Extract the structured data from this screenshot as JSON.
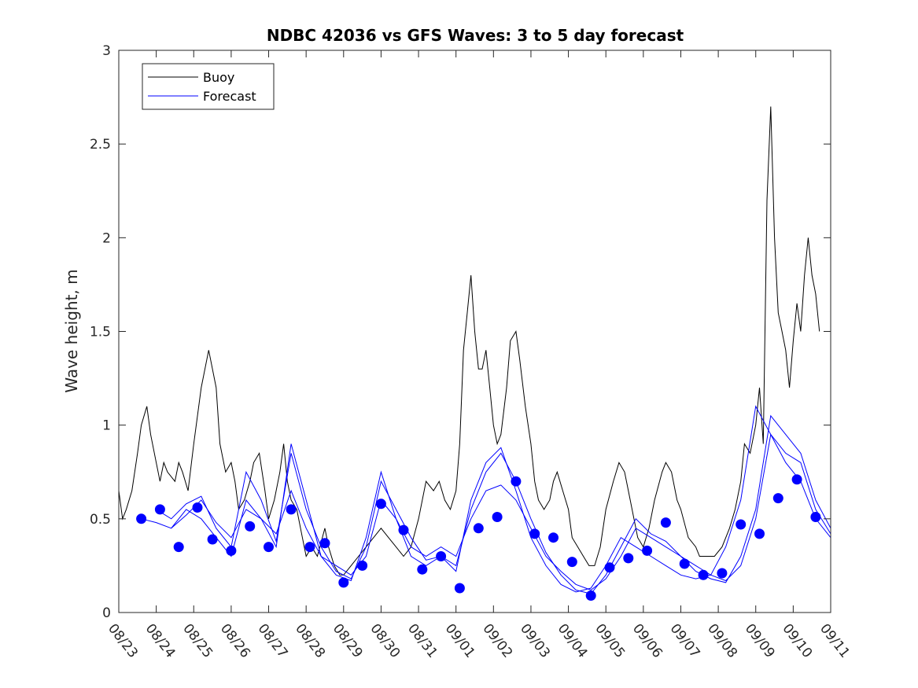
{
  "chart_data": {
    "type": "line",
    "title": "NDBC 42036 vs GFS Waves: 3 to 5 day forecast",
    "xlabel": "",
    "ylabel": "Wave height, m",
    "x_unit": "days since 08/23 00:00",
    "xlim": [
      0,
      19
    ],
    "ylim": [
      0,
      3
    ],
    "x_tick_labels": [
      "08/23",
      "08/24",
      "08/25",
      "08/26",
      "08/27",
      "08/28",
      "08/29",
      "08/30",
      "08/31",
      "09/01",
      "09/02",
      "09/03",
      "09/04",
      "09/05",
      "09/06",
      "09/07",
      "09/08",
      "09/09",
      "09/10",
      "09/11"
    ],
    "y_tick_labels": [
      "0",
      "0.5",
      "1",
      "1.5",
      "2",
      "2.5",
      "3"
    ],
    "y_ticks": [
      0,
      0.5,
      1,
      1.5,
      2,
      2.5,
      3
    ],
    "grid": false,
    "legend": {
      "position": "top-left",
      "entries": [
        "Buoy",
        "Forecast"
      ]
    },
    "colors": {
      "buoy": "#000000",
      "forecast": "#0000ff"
    },
    "buoy": {
      "name": "Buoy",
      "x": [
        0,
        0.1,
        0.2,
        0.35,
        0.5,
        0.6,
        0.75,
        0.85,
        1.0,
        1.1,
        1.2,
        1.3,
        1.5,
        1.6,
        1.7,
        1.85,
        2.0,
        2.2,
        2.4,
        2.6,
        2.7,
        2.85,
        3.0,
        3.1,
        3.2,
        3.35,
        3.5,
        3.6,
        3.75,
        3.9,
        4.0,
        4.15,
        4.3,
        4.4,
        4.5,
        4.6,
        4.75,
        4.9,
        5.0,
        5.15,
        5.3,
        5.5,
        5.6,
        5.75,
        5.9,
        6.0,
        6.2,
        6.4,
        6.6,
        6.8,
        7.0,
        7.2,
        7.4,
        7.6,
        7.8,
        8.0,
        8.2,
        8.4,
        8.55,
        8.7,
        8.85,
        9.0,
        9.1,
        9.2,
        9.3,
        9.4,
        9.5,
        9.6,
        9.7,
        9.8,
        9.9,
        10.0,
        10.1,
        10.2,
        10.35,
        10.45,
        10.6,
        10.7,
        10.85,
        11.0,
        11.1,
        11.2,
        11.35,
        11.5,
        11.6,
        11.7,
        11.85,
        12.0,
        12.1,
        12.25,
        12.4,
        12.55,
        12.7,
        12.85,
        13.0,
        13.2,
        13.35,
        13.5,
        13.6,
        13.75,
        13.85,
        14.0,
        14.15,
        14.3,
        14.5,
        14.6,
        14.75,
        14.9,
        15.0,
        15.2,
        15.4,
        15.5,
        15.7,
        15.9,
        16.1,
        16.3,
        16.45,
        16.6,
        16.7,
        16.85,
        17.0,
        17.1,
        17.2,
        17.3,
        17.4,
        17.5,
        17.6,
        17.7,
        17.8,
        17.9,
        18.0,
        18.1,
        18.2,
        18.3,
        18.4,
        18.5,
        18.6,
        18.7
      ],
      "values": [
        0.65,
        0.5,
        0.55,
        0.65,
        0.85,
        1.0,
        1.1,
        0.95,
        0.8,
        0.7,
        0.8,
        0.75,
        0.7,
        0.8,
        0.75,
        0.65,
        0.9,
        1.2,
        1.4,
        1.2,
        0.9,
        0.75,
        0.8,
        0.7,
        0.55,
        0.6,
        0.7,
        0.8,
        0.85,
        0.65,
        0.5,
        0.6,
        0.75,
        0.9,
        0.7,
        0.6,
        0.55,
        0.4,
        0.3,
        0.35,
        0.3,
        0.45,
        0.35,
        0.25,
        0.2,
        0.2,
        0.25,
        0.3,
        0.35,
        0.4,
        0.45,
        0.4,
        0.35,
        0.3,
        0.35,
        0.5,
        0.7,
        0.65,
        0.7,
        0.6,
        0.55,
        0.65,
        0.9,
        1.4,
        1.6,
        1.8,
        1.5,
        1.3,
        1.3,
        1.4,
        1.2,
        1.0,
        0.9,
        0.95,
        1.2,
        1.45,
        1.5,
        1.35,
        1.1,
        0.9,
        0.7,
        0.6,
        0.55,
        0.6,
        0.7,
        0.75,
        0.65,
        0.55,
        0.4,
        0.35,
        0.3,
        0.25,
        0.25,
        0.35,
        0.55,
        0.7,
        0.8,
        0.75,
        0.65,
        0.5,
        0.4,
        0.35,
        0.45,
        0.6,
        0.75,
        0.8,
        0.75,
        0.6,
        0.55,
        0.4,
        0.35,
        0.3,
        0.3,
        0.3,
        0.35,
        0.45,
        0.55,
        0.7,
        0.9,
        0.85,
        1.0,
        1.2,
        0.9,
        2.2,
        2.7,
        2.0,
        1.6,
        1.5,
        1.4,
        1.2,
        1.45,
        1.65,
        1.5,
        1.8,
        2.0,
        1.8,
        1.7,
        1.5
      ]
    },
    "forecast_dots": {
      "name": "Forecast",
      "x": [
        0.6,
        1.1,
        1.6,
        2.1,
        2.5,
        3.0,
        3.5,
        4.0,
        4.6,
        5.1,
        5.5,
        6.0,
        6.5,
        7.0,
        7.6,
        8.1,
        8.6,
        9.1,
        9.6,
        10.1,
        10.6,
        11.1,
        11.6,
        12.1,
        12.6,
        13.1,
        13.6,
        14.1,
        14.6,
        15.1,
        15.6,
        16.1,
        16.6,
        17.1,
        17.6,
        18.1,
        18.6
      ],
      "values": [
        0.5,
        0.55,
        0.35,
        0.56,
        0.39,
        0.33,
        0.46,
        0.35,
        0.55,
        0.35,
        0.37,
        0.16,
        0.25,
        0.58,
        0.44,
        0.23,
        0.3,
        0.13,
        0.45,
        0.51,
        0.7,
        0.42,
        0.4,
        0.27,
        0.09,
        0.24,
        0.29,
        0.33,
        0.48,
        0.26,
        0.2,
        0.21,
        0.47,
        0.42,
        0.61,
        0.71,
        0.51
      ]
    },
    "forecast_lines": [
      {
        "name": "Forecast",
        "x": [
          0.6,
          1.0,
          1.4,
          1.8,
          2.2,
          2.6,
          3.0,
          3.4,
          3.8,
          4.2,
          4.6,
          5.0,
          5.4,
          5.8,
          6.2,
          6.6,
          7.0,
          7.4,
          7.8,
          8.2,
          8.6,
          9.0,
          9.4,
          9.8,
          10.2,
          10.6,
          11.0,
          11.4,
          11.8,
          12.2,
          12.6,
          13.0,
          13.4,
          13.8,
          14.2,
          14.6,
          15.0,
          15.4,
          15.8,
          16.2,
          16.6,
          17.0,
          17.4,
          17.8,
          18.2,
          18.6,
          19.0
        ],
        "values": [
          0.5,
          0.48,
          0.45,
          0.52,
          0.6,
          0.48,
          0.4,
          0.55,
          0.5,
          0.42,
          0.65,
          0.45,
          0.3,
          0.25,
          0.2,
          0.3,
          0.6,
          0.5,
          0.35,
          0.3,
          0.35,
          0.3,
          0.5,
          0.65,
          0.68,
          0.6,
          0.45,
          0.3,
          0.22,
          0.15,
          0.12,
          0.18,
          0.3,
          0.45,
          0.4,
          0.35,
          0.3,
          0.25,
          0.2,
          0.17,
          0.25,
          0.5,
          0.95,
          0.85,
          0.8,
          0.55,
          0.42
        ]
      },
      {
        "name": "Forecast",
        "x": [
          1.0,
          1.4,
          1.8,
          2.2,
          2.6,
          3.0,
          3.4,
          3.8,
          4.2,
          4.6,
          5.0,
          5.4,
          5.8,
          6.2,
          6.6,
          7.0,
          7.4,
          7.8,
          8.2,
          8.6,
          9.0,
          9.4,
          9.8,
          10.2,
          10.6,
          11.0,
          11.4,
          11.8,
          12.2,
          12.6,
          13.0,
          13.4,
          13.8,
          14.2,
          14.6,
          15.0,
          15.4,
          15.8,
          16.2,
          16.6,
          17.0,
          17.4,
          17.8,
          18.2,
          18.6,
          19.0
        ],
        "values": [
          0.55,
          0.5,
          0.58,
          0.62,
          0.45,
          0.35,
          0.75,
          0.6,
          0.38,
          0.85,
          0.55,
          0.35,
          0.22,
          0.18,
          0.35,
          0.7,
          0.55,
          0.4,
          0.28,
          0.3,
          0.25,
          0.55,
          0.75,
          0.85,
          0.7,
          0.5,
          0.32,
          0.2,
          0.12,
          0.1,
          0.2,
          0.35,
          0.5,
          0.42,
          0.38,
          0.3,
          0.22,
          0.18,
          0.16,
          0.3,
          0.55,
          1.05,
          0.95,
          0.85,
          0.6,
          0.45
        ]
      },
      {
        "name": "Forecast",
        "x": [
          1.4,
          1.8,
          2.2,
          2.6,
          3.0,
          3.4,
          3.8,
          4.2,
          4.6,
          5.0,
          5.4,
          5.8,
          6.2,
          6.6,
          7.0,
          7.4,
          7.8,
          8.2,
          8.6,
          9.0,
          9.4,
          9.8,
          10.2,
          10.6,
          11.0,
          11.4,
          11.8,
          12.2,
          12.6,
          13.0,
          13.4,
          13.8,
          14.2,
          14.6,
          15.0,
          15.4,
          15.8,
          16.2,
          16.6,
          17.0,
          17.4,
          17.8,
          18.2,
          18.6,
          19.0
        ],
        "values": [
          0.45,
          0.55,
          0.5,
          0.4,
          0.3,
          0.6,
          0.5,
          0.35,
          0.9,
          0.6,
          0.3,
          0.2,
          0.17,
          0.4,
          0.75,
          0.5,
          0.3,
          0.25,
          0.3,
          0.22,
          0.6,
          0.8,
          0.88,
          0.65,
          0.4,
          0.25,
          0.15,
          0.11,
          0.13,
          0.25,
          0.4,
          0.35,
          0.3,
          0.25,
          0.2,
          0.18,
          0.2,
          0.35,
          0.6,
          1.1,
          0.95,
          0.8,
          0.7,
          0.5,
          0.4
        ]
      }
    ]
  }
}
